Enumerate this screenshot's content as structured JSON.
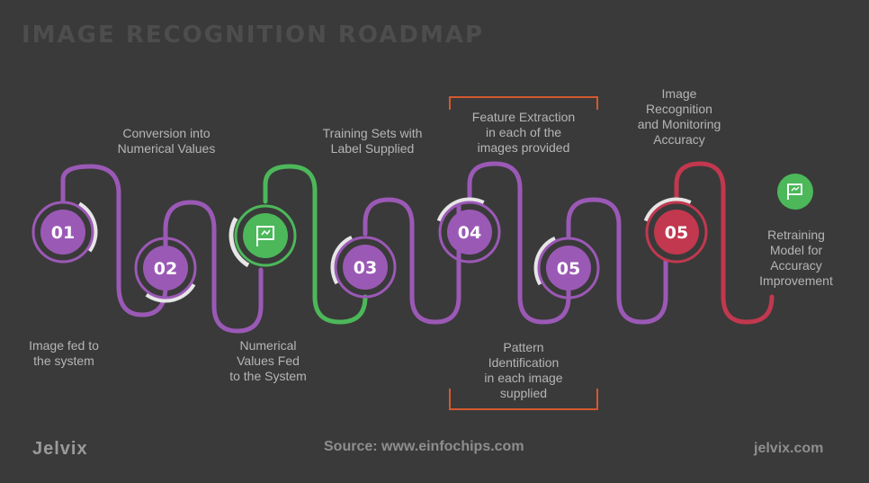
{
  "title": "IMAGE RECOGNITION ROADMAP",
  "steps": [
    {
      "number": "01",
      "label": "Image fed to\nthe system"
    },
    {
      "number": "02",
      "label": "Conversion into\nNumerical Values"
    },
    {
      "icon": "flag-icon",
      "label": "Numerical\nValues Fed\nto the System"
    },
    {
      "number": "03",
      "label": "Training Sets with\nLabel Supplied"
    },
    {
      "number": "04",
      "label": "Feature Extraction\nin each of the\nimages provided"
    },
    {
      "number": "05",
      "label": "Pattern\nIdentification\nin each image\nsupplied"
    },
    {
      "number": "05",
      "label": "Image\nRecognition\nand Monitoring\nAccuracy"
    },
    {
      "icon": "flag-icon",
      "label": "Retraining\nModel for\nAccuracy\nImprovement"
    }
  ],
  "footer": {
    "brand": "Jelvix",
    "source": "Source: www.einfochips.com",
    "site": "jelvix.com"
  },
  "colors": {
    "background": "#3a3a3a",
    "purple": "#9b59b6",
    "green": "#4cb85a",
    "red": "#c2384f",
    "orange_frame": "#d4582f",
    "text": "#b5b5b5"
  }
}
